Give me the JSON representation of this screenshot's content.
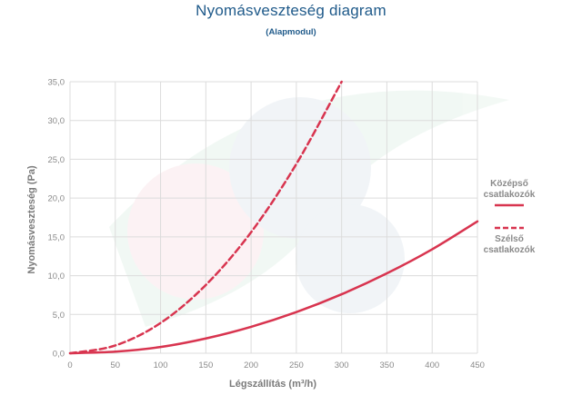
{
  "header": {
    "title": "Nyomásveszteség diagram",
    "subtitle": "(Alapmodul)"
  },
  "colors": {
    "series": "#d8344f",
    "grid": "#dcdcdc",
    "axis_text": "#8a8a8a",
    "title": "#1f5a8a"
  },
  "chart_data": {
    "type": "line",
    "title": "Nyomásveszteség diagram",
    "subtitle": "(Alapmodul)",
    "xlabel": "Légszállítás (m³/h)",
    "ylabel": "Nyomásveszteség (Pa)",
    "xlim": [
      0,
      450
    ],
    "ylim": [
      0,
      35
    ],
    "x_ticks": [
      "0",
      "50",
      "100",
      "150",
      "200",
      "250",
      "300",
      "350",
      "400",
      "450"
    ],
    "y_ticks": [
      "0,0",
      "5,0",
      "10,0",
      "15,0",
      "20,0",
      "25,0",
      "30,0",
      "35,0"
    ],
    "grid": true,
    "legend_position": "right",
    "series": [
      {
        "name": "Középső csatlakozók",
        "style": "solid",
        "x": [
          0,
          50,
          100,
          150,
          200,
          250,
          300,
          350,
          400,
          450
        ],
        "y": [
          0,
          0.2,
          0.8,
          1.9,
          3.4,
          5.3,
          7.6,
          10.3,
          13.4,
          17.0
        ]
      },
      {
        "name": "Szélső csatlakozók",
        "style": "dashed",
        "x": [
          0,
          50,
          100,
          150,
          200,
          250,
          300
        ],
        "y": [
          0,
          1.0,
          3.9,
          8.8,
          15.6,
          24.4,
          35.0
        ]
      }
    ]
  }
}
